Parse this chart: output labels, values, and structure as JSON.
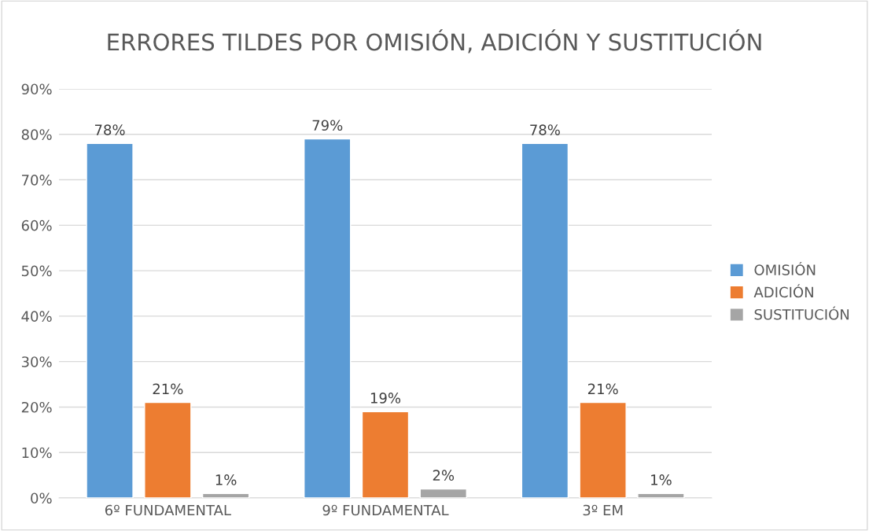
{
  "chart_data": {
    "type": "bar",
    "title": "ERRORES TILDES POR OMISIÓN, ADICIÓN Y SUSTITUCIÓN",
    "categories": [
      "6º FUNDAMENTAL",
      "9º FUNDAMENTAL",
      "3º EM"
    ],
    "series": [
      {
        "name": "OMISIÓN",
        "color": "#5b9bd5",
        "values": [
          78,
          79,
          78
        ],
        "value_labels": [
          "78%",
          "79%",
          "78%"
        ]
      },
      {
        "name": "ADICIÓN",
        "color": "#ed7d31",
        "values": [
          21,
          19,
          21
        ],
        "value_labels": [
          "21%",
          "19%",
          "21%"
        ]
      },
      {
        "name": "SUSTITUCIÓN",
        "color": "#a5a5a5",
        "values": [
          1,
          2,
          1
        ],
        "value_labels": [
          "1%",
          "2%",
          "1%"
        ]
      }
    ],
    "ylim": [
      0,
      90
    ],
    "yticks": [
      {
        "value": 0,
        "label": "0%"
      },
      {
        "value": 10,
        "label": "10%"
      },
      {
        "value": 20,
        "label": "20%"
      },
      {
        "value": 30,
        "label": "30%"
      },
      {
        "value": 40,
        "label": "40%"
      },
      {
        "value": 50,
        "label": "50%"
      },
      {
        "value": 60,
        "label": "60%"
      },
      {
        "value": 70,
        "label": "70%"
      },
      {
        "value": 80,
        "label": "80%"
      },
      {
        "value": 90,
        "label": "90%"
      }
    ],
    "grid": "y",
    "legend": "right"
  }
}
